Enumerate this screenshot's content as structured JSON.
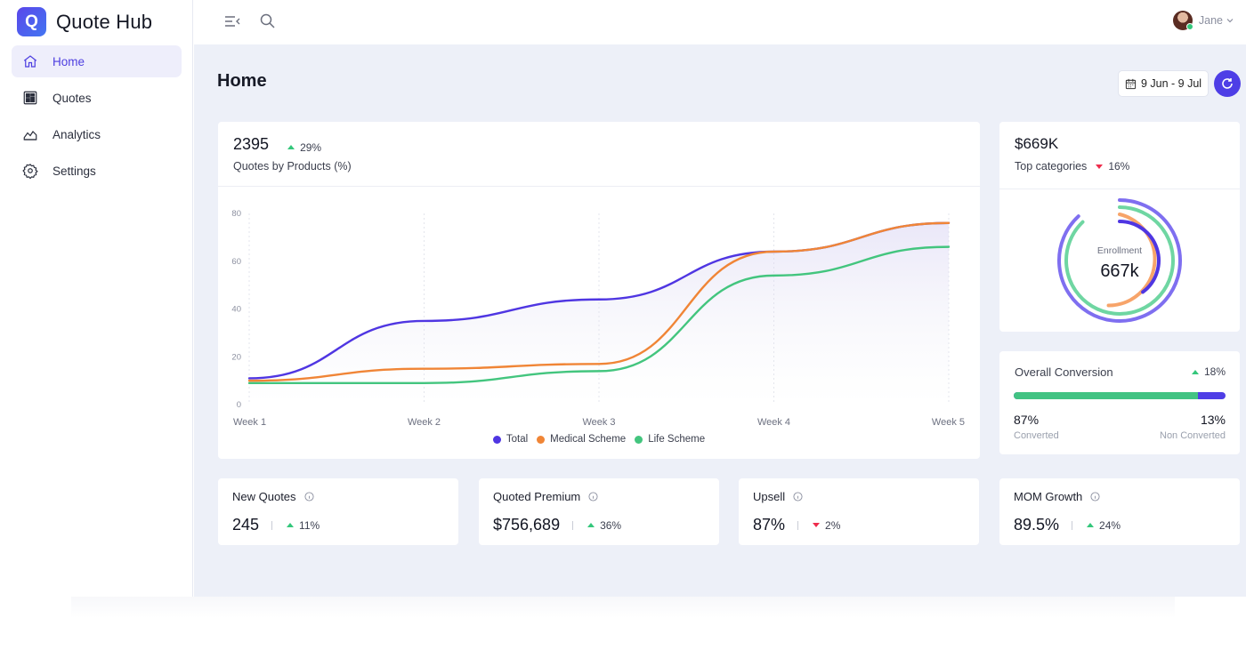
{
  "app": {
    "name": "Quote Hub",
    "logo_letter": "Q",
    "accent": "#4e3ee6"
  },
  "sidebar": {
    "items": [
      {
        "label": "Home",
        "icon": "home-icon",
        "active": true
      },
      {
        "label": "Quotes",
        "icon": "grid-icon"
      },
      {
        "label": "Analytics",
        "icon": "analytics-icon"
      },
      {
        "label": "Settings",
        "icon": "gear-icon"
      }
    ]
  },
  "topbar": {
    "user_name": "Jane"
  },
  "page": {
    "title": "Home",
    "date_range": "9 Jun - 9 Jul"
  },
  "quotes_chart": {
    "total": "2395",
    "delta": "29%",
    "delta_direction": "up",
    "subtitle": "Quotes by Products (%)"
  },
  "chart_data": {
    "type": "line",
    "categories": [
      "Week 1",
      "Week 2",
      "Week 3",
      "Week 4",
      "Week 5"
    ],
    "ylim": [
      0,
      80
    ],
    "yticks": [
      0,
      20,
      40,
      60,
      80
    ],
    "grid": "vertical dashed",
    "legend_position": "bottom",
    "series": [
      {
        "name": "Total",
        "color": "#4f36e2",
        "values": [
          11,
          35,
          44,
          64,
          76
        ]
      },
      {
        "name": "Medical Scheme",
        "color": "#f08536",
        "values": [
          10,
          15,
          17,
          64,
          76
        ]
      },
      {
        "name": "Life Scheme",
        "color": "#43c57e",
        "values": [
          9,
          9,
          14,
          54,
          66
        ]
      }
    ]
  },
  "top_categories": {
    "value": "$669K",
    "label": "Top categories",
    "delta": "16%",
    "delta_direction": "down",
    "center_label": "Enrollment",
    "center_value": "667k"
  },
  "conversion": {
    "title": "Overall Conversion",
    "delta": "18%",
    "delta_direction": "up",
    "converted_pct": 87,
    "converted_value": "87%",
    "converted_label": "Converted",
    "non_converted_value": "13%",
    "non_converted_label": "Non Converted"
  },
  "metrics": [
    {
      "title": "New Quotes",
      "value": "245",
      "delta": "11%",
      "direction": "up"
    },
    {
      "title": "Quoted Premium",
      "value": "$756,689",
      "delta": "36%",
      "direction": "up"
    },
    {
      "title": "Upsell",
      "value": "87%",
      "delta": "2%",
      "direction": "down"
    },
    {
      "title": "MOM Growth",
      "value": "89.5%",
      "delta": "24%",
      "direction": "up"
    }
  ]
}
